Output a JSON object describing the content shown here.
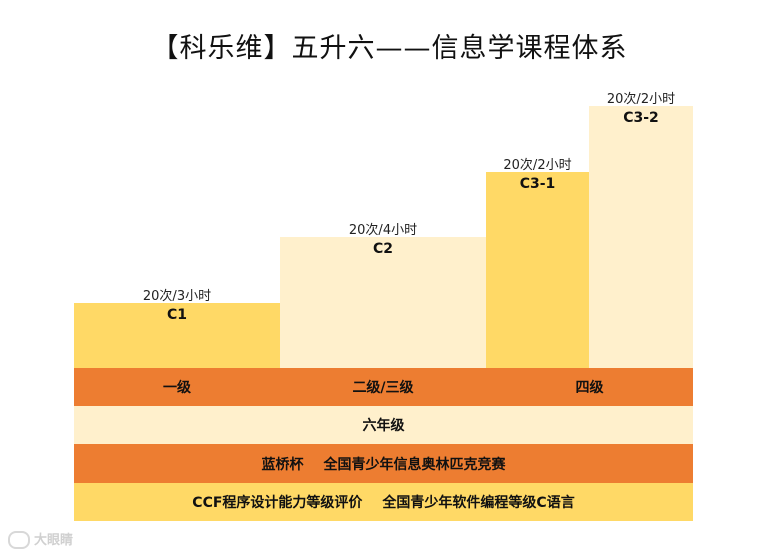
{
  "title": "【科乐维】五升六——信息学课程体系",
  "colors": {
    "bar_dark": "#FFD966",
    "bar_light": "#FFF0CC",
    "band_orange": "#ED7D31",
    "band_cream": "#FFF0CC",
    "band_yellow": "#FFD966"
  },
  "chart_data": {
    "type": "bar",
    "title": "【科乐维】五升六——信息学课程体系",
    "categories": [
      "C1",
      "C2",
      "C3-1",
      "C3-2"
    ],
    "values": [
      1,
      2,
      3,
      4
    ],
    "durations": [
      "20次/3小时",
      "20次/4小时",
      "20次/2小时",
      "20次/2小时"
    ],
    "ylim": [
      0,
      4.4
    ],
    "grid": false,
    "legend": "none"
  },
  "bands": {
    "grades": [
      "一级",
      "二级/三级",
      "四级"
    ],
    "grade_year": "六年级",
    "competition": [
      "蓝桥杯",
      "全国青少年信息奥林匹克竞赛"
    ],
    "certification": [
      "CCF程序设计能力等级评价",
      "全国青少年软件编程等级C语言"
    ]
  },
  "watermark": {
    "icon": "kc-logo-icon",
    "text": "大眼睛"
  }
}
